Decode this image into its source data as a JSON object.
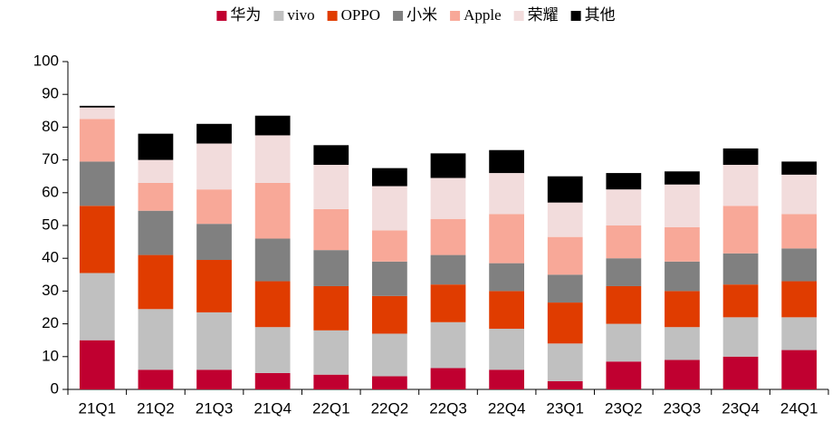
{
  "chart_data": {
    "type": "stacked_bar",
    "categories": [
      "21Q1",
      "21Q2",
      "21Q3",
      "21Q4",
      "22Q1",
      "22Q2",
      "22Q3",
      "22Q4",
      "23Q1",
      "23Q2",
      "23Q3",
      "23Q4",
      "24Q1"
    ],
    "series": [
      {
        "name": "华为",
        "color": "#c00030",
        "values": [
          15,
          6,
          6,
          5,
          4.5,
          4,
          6.5,
          6,
          2.5,
          8.5,
          9,
          10,
          12
        ]
      },
      {
        "name": "vivo",
        "color": "#c0c0c0",
        "values": [
          20.5,
          18.5,
          17.5,
          14,
          13.5,
          13,
          14,
          12.5,
          11.5,
          11.5,
          10,
          12,
          10
        ]
      },
      {
        "name": "OPPO",
        "color": "#e03c00",
        "values": [
          20.5,
          16.5,
          16,
          14,
          13.5,
          11.5,
          11.5,
          11.5,
          12.5,
          11.5,
          11,
          10,
          11
        ]
      },
      {
        "name": "小米",
        "color": "#808080",
        "values": [
          13.5,
          13.5,
          11,
          13,
          11,
          10.5,
          9,
          8.5,
          8.5,
          8.5,
          9,
          9.5,
          10
        ]
      },
      {
        "name": "Apple",
        "color": "#f8a898",
        "values": [
          13,
          8.5,
          10.5,
          17,
          12.5,
          9.5,
          11,
          15,
          11.5,
          10,
          10.5,
          14.5,
          10.5
        ]
      },
      {
        "name": "荣耀",
        "color": "#f2dcdc",
        "values": [
          3.5,
          7,
          14,
          14.5,
          13.5,
          13.5,
          12.5,
          12.5,
          10.5,
          11,
          13,
          12.5,
          12
        ]
      },
      {
        "name": "其他",
        "color": "#000000",
        "values": [
          0.5,
          8,
          6,
          6,
          6,
          5.5,
          7.5,
          7,
          8,
          5,
          4,
          5,
          4
        ]
      }
    ],
    "ylim": [
      0,
      100
    ],
    "yticks": [
      0,
      10,
      20,
      30,
      40,
      50,
      60,
      70,
      80,
      90,
      100
    ],
    "legend": "top"
  }
}
